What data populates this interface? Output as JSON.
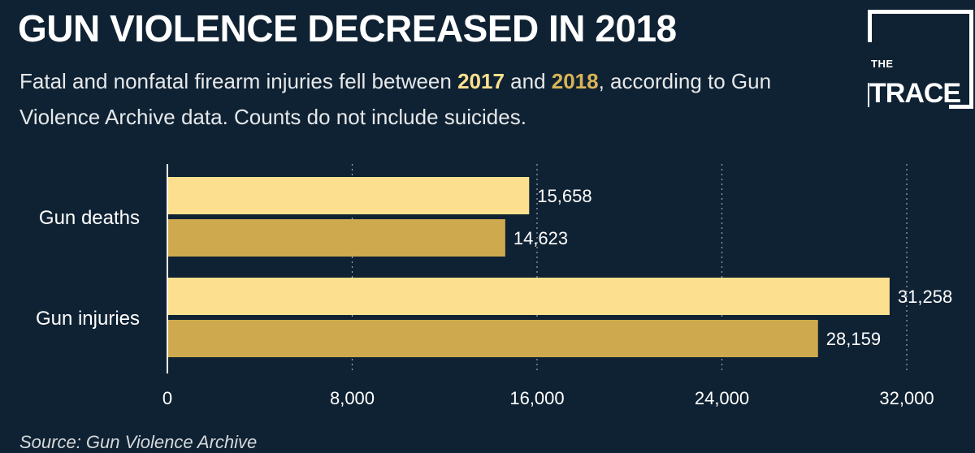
{
  "header": {
    "title": "GUN VIOLENCE DECREASED IN 2018",
    "subtitle_part1": "Fatal and nonfatal firearm injuries fell between ",
    "year_a": "2017",
    "subtitle_part2": " and ",
    "year_b": "2018",
    "subtitle_part3": ", according to Gun Violence Archive data. Counts do not include suicides."
  },
  "logo": {
    "line1": "THE",
    "line2": "TRACE"
  },
  "source": "Source: Gun Violence Archive",
  "colors": {
    "background": "#0f2233",
    "series_2017": "#fde08f",
    "series_2018": "#cfa94e",
    "text": "#ffffff"
  },
  "chart_data": {
    "type": "bar",
    "orientation": "horizontal",
    "categories": [
      "Gun deaths",
      "Gun injuries"
    ],
    "series": [
      {
        "name": "2017",
        "values": [
          15658,
          31258
        ],
        "labels": [
          "15,658",
          "31,258"
        ]
      },
      {
        "name": "2018",
        "values": [
          14623,
          28159
        ],
        "labels": [
          "14,623",
          "28,159"
        ]
      }
    ],
    "xlim": [
      0,
      32000
    ],
    "xticks": [
      0,
      8000,
      16000,
      24000,
      32000
    ],
    "xtick_labels": [
      "0",
      "8,000",
      "16,000",
      "24,000",
      "32,000"
    ],
    "grid": true,
    "legend": "none"
  }
}
